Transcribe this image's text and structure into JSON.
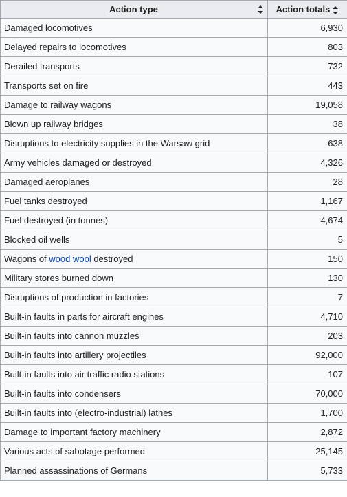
{
  "table": {
    "headers": {
      "action_type": "Action type",
      "action_totals": "Action totals"
    },
    "rows": [
      {
        "action": "Damaged locomotives",
        "total": "6,930"
      },
      {
        "action": "Delayed repairs to locomotives",
        "total": "803"
      },
      {
        "action": "Derailed transports",
        "total": "732"
      },
      {
        "action": "Transports set on fire",
        "total": "443"
      },
      {
        "action": "Damage to railway wagons",
        "total": "19,058"
      },
      {
        "action": "Blown up railway bridges",
        "total": "38"
      },
      {
        "action": "Disruptions to electricity supplies in the Warsaw grid",
        "total": "638"
      },
      {
        "action": "Army vehicles damaged or destroyed",
        "total": "4,326"
      },
      {
        "action": "Damaged aeroplanes",
        "total": "28"
      },
      {
        "action": "Fuel tanks destroyed",
        "total": "1,167"
      },
      {
        "action": "Fuel destroyed (in tonnes)",
        "total": "4,674"
      },
      {
        "action": "Blocked oil wells",
        "total": "5"
      },
      {
        "action_parts": {
          "before": "Wagons of ",
          "link": "wood wool",
          "after": " destroyed"
        },
        "total": "150"
      },
      {
        "action": "Military stores burned down",
        "total": "130"
      },
      {
        "action": "Disruptions of production in factories",
        "total": "7"
      },
      {
        "action": "Built-in faults in parts for aircraft engines",
        "total": "4,710"
      },
      {
        "action": "Built-in faults into cannon muzzles",
        "total": "203"
      },
      {
        "action": "Built-in faults into artillery projectiles",
        "total": "92,000"
      },
      {
        "action": "Built-in faults into air traffic radio stations",
        "total": "107"
      },
      {
        "action": "Built-in faults into condensers",
        "total": "70,000"
      },
      {
        "action": "Built-in faults into (electro-industrial) lathes",
        "total": "1,700"
      },
      {
        "action": "Damage to important factory machinery",
        "total": "2,872"
      },
      {
        "action": "Various acts of sabotage performed",
        "total": "25,145"
      },
      {
        "action": "Planned assassinations of Germans",
        "total": "5,733"
      }
    ]
  },
  "icons": {
    "sort": "sort-up-down-icon"
  },
  "colors": {
    "header_bg": "#eaecf0",
    "cell_bg": "#f8f9fa",
    "border": "#a2a9b1",
    "link": "#0645ad",
    "text": "#202122"
  }
}
